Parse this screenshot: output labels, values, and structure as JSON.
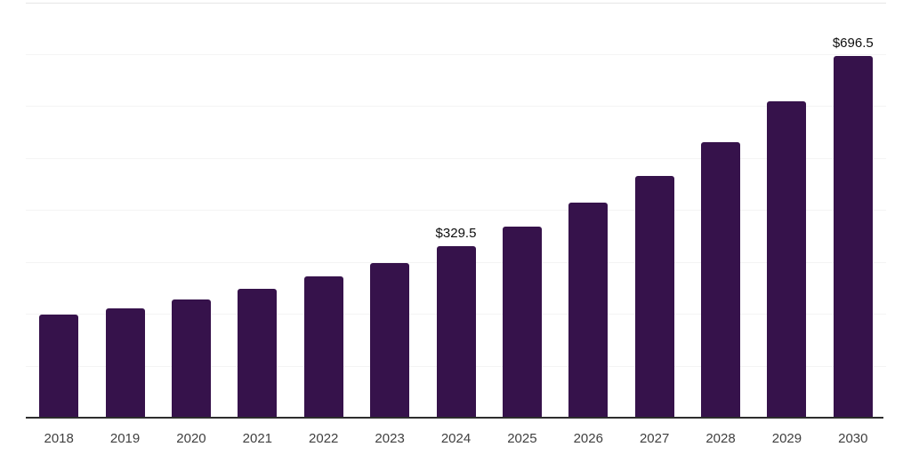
{
  "chart_data": {
    "type": "bar",
    "title": "",
    "xlabel": "",
    "ylabel": "",
    "categories": [
      "2018",
      "2019",
      "2020",
      "2021",
      "2022",
      "2023",
      "2024",
      "2025",
      "2026",
      "2027",
      "2028",
      "2029",
      "2030"
    ],
    "values": [
      198.5,
      211.0,
      227.5,
      247.5,
      272.0,
      297.5,
      329.5,
      367.5,
      413.5,
      466.0,
      531.0,
      608.5,
      696.5
    ],
    "value_labels": {
      "2024": "$329.5",
      "2030": "$696.5"
    },
    "ylim": [
      0,
      800
    ],
    "grid_step": 100,
    "grid": true,
    "legend": false,
    "colors": {
      "background": "#ffffff",
      "bar": "#36124B",
      "gridline": "#f4f4f4",
      "gridline_top": "#e6e6e6",
      "axis": "#2d2d2d",
      "tick_label": "#404040",
      "value_label": "#0d0d0d"
    }
  }
}
